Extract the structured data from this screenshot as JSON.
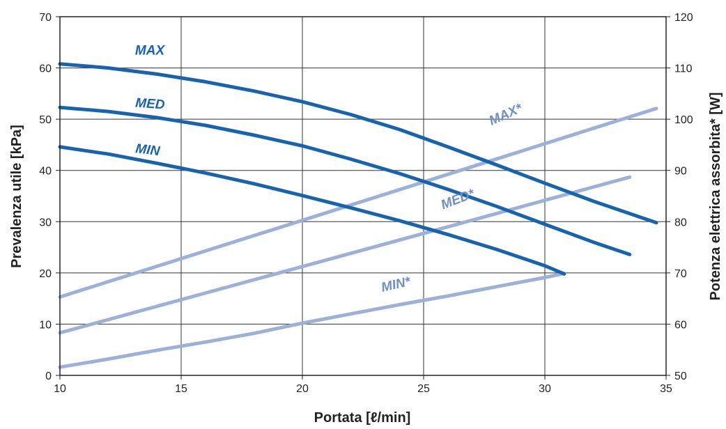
{
  "chart_data": {
    "type": "line",
    "title": "",
    "xlabel": "Portata [ℓ/min]",
    "ylabel_left": "Prevalenza utile [kPa]",
    "ylabel_right": "Potenza elettrica assorbita* [W]",
    "xlim": [
      10,
      35
    ],
    "ylim_left": [
      0,
      70
    ],
    "ylim_right": [
      50,
      120
    ],
    "x_ticks": [
      "10",
      "15",
      "20",
      "25",
      "30",
      "35"
    ],
    "y_left_ticks": [
      "0",
      "10",
      "20",
      "30",
      "40",
      "50",
      "60",
      "70"
    ],
    "y_right_ticks": [
      "50",
      "60",
      "70",
      "80",
      "90",
      "100",
      "110",
      "120"
    ],
    "grid": true,
    "colors": {
      "head": "#1763ad",
      "power": "#9db0da",
      "head_label": "#1763ad",
      "power_label": "#6f8fc4"
    },
    "series": [
      {
        "name": "MAX",
        "axis": "left",
        "kind": "head",
        "x": [
          10,
          12,
          14,
          16,
          18,
          20,
          22,
          24,
          26,
          28,
          30,
          32,
          34.6
        ],
        "y": [
          60.8,
          60.0,
          58.8,
          57.3,
          55.5,
          53.4,
          50.9,
          48.0,
          44.6,
          41.1,
          37.5,
          34.0,
          29.8
        ],
        "label_text": "MAX",
        "label_x": 13.1,
        "label_y": 62.6,
        "label_rot": 0
      },
      {
        "name": "MED",
        "axis": "left",
        "kind": "head",
        "x": [
          10,
          12,
          14,
          16,
          18,
          20,
          22,
          24,
          26,
          28,
          30,
          32,
          33.5
        ],
        "y": [
          52.3,
          51.5,
          50.3,
          48.8,
          46.9,
          44.8,
          42.2,
          39.4,
          36.3,
          33.0,
          29.5,
          26.0,
          23.6
        ],
        "label_text": "MED",
        "label_x": 13.1,
        "label_y": 52.4,
        "label_rot": 4
      },
      {
        "name": "MIN",
        "axis": "left",
        "kind": "head",
        "x": [
          10,
          12,
          14,
          16,
          18,
          20,
          22,
          24,
          26,
          28,
          30,
          30.8
        ],
        "y": [
          44.6,
          43.2,
          41.4,
          39.5,
          37.4,
          35.1,
          32.7,
          30.2,
          27.5,
          24.6,
          21.4,
          19.8
        ],
        "label_text": "MIN",
        "label_x": 13.1,
        "label_y": 43.5,
        "label_rot": 7
      },
      {
        "name": "MAX*",
        "axis": "right",
        "kind": "power",
        "x": [
          10,
          34.6
        ],
        "y": [
          65.3,
          102.1
        ],
        "label_text": "MAX*",
        "label_x": 27.8,
        "label_y": 98.8,
        "label_rot": -24
      },
      {
        "name": "MED*",
        "axis": "right",
        "kind": "power",
        "x": [
          10,
          33.5
        ],
        "y": [
          58.3,
          88.7
        ],
        "label_text": "MED*",
        "label_x": 25.8,
        "label_y": 82.4,
        "label_rot": -21
      },
      {
        "name": "MIN*",
        "axis": "right",
        "kind": "power",
        "x": [
          10,
          12,
          14,
          16,
          18,
          20,
          22,
          24,
          26,
          28,
          30,
          30.8
        ],
        "y": [
          51.6,
          53.2,
          54.9,
          56.5,
          58.2,
          60.2,
          62.0,
          63.8,
          65.5,
          67.3,
          69.1,
          69.9
        ],
        "label_text": "MIN*",
        "label_x": 23.3,
        "label_y": 66.3,
        "label_rot": -13
      }
    ]
  }
}
